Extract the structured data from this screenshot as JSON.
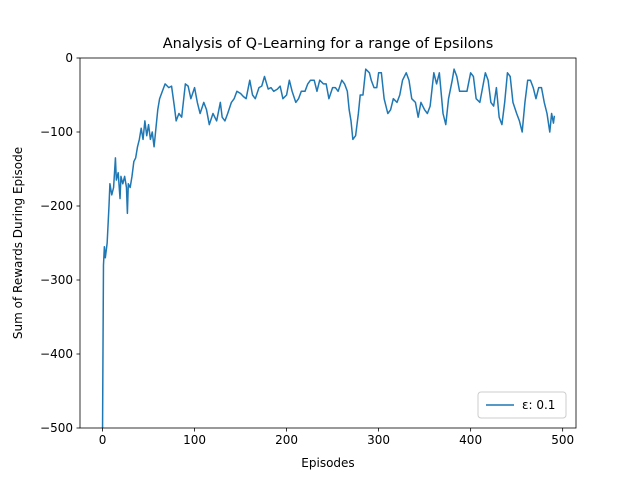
{
  "chart_data": {
    "type": "line",
    "title": "Analysis of Q-Learning for a range of Epsilons",
    "x_label": "Episodes",
    "y_label": "Sum of Rewards During Episode",
    "xlim": [
      -24.5,
      514.5
    ],
    "xticks": [
      0,
      100,
      200,
      300,
      400,
      500
    ],
    "ylim": [
      -500,
      0
    ],
    "yticks": [
      {
        "value": -500,
        "label": "−500"
      },
      {
        "value": -400,
        "label": "−400"
      },
      {
        "value": -300,
        "label": "−300"
      },
      {
        "value": -200,
        "label": "−200"
      },
      {
        "value": -100,
        "label": "−100"
      },
      0
    ],
    "legend": "lower right",
    "x": [
      0,
      1,
      2,
      3,
      5,
      7,
      8,
      10,
      12,
      14,
      15,
      17,
      19,
      20,
      22,
      24,
      26,
      27,
      28,
      30,
      32,
      34,
      36,
      38,
      40,
      42,
      44,
      46,
      48,
      50,
      52,
      54,
      56,
      58,
      60,
      62,
      65,
      68,
      72,
      75,
      78,
      80,
      83,
      86,
      90,
      93,
      96,
      100,
      103,
      106,
      110,
      113,
      116,
      120,
      124,
      128,
      130,
      133,
      136,
      140,
      143,
      146,
      150,
      153,
      156,
      160,
      163,
      166,
      170,
      173,
      176,
      180,
      183,
      186,
      190,
      193,
      196,
      200,
      203,
      206,
      210,
      213,
      216,
      220,
      223,
      226,
      230,
      233,
      236,
      240,
      243,
      246,
      250,
      253,
      256,
      260,
      263,
      266,
      268,
      270,
      272,
      275,
      278,
      280,
      283,
      286,
      290,
      292,
      295,
      298,
      300,
      303,
      306,
      310,
      313,
      316,
      320,
      323,
      326,
      330,
      333,
      336,
      340,
      343,
      346,
      350,
      353,
      356,
      360,
      363,
      366,
      370,
      373,
      376,
      380,
      382,
      385,
      388,
      392,
      396,
      400,
      403,
      406,
      410,
      413,
      416,
      419,
      422,
      425,
      428,
      431,
      434,
      437,
      440,
      443,
      446,
      450,
      453,
      456,
      459,
      462,
      465,
      468,
      471,
      474,
      477,
      480,
      483,
      486,
      488,
      490,
      491
    ],
    "series": [
      {
        "name": "ε: 0.1",
        "color": "#1f77b4",
        "values": [
          -500,
          -280,
          -255,
          -270,
          -250,
          -200,
          -170,
          -185,
          -175,
          -135,
          -165,
          -155,
          -190,
          -160,
          -170,
          -160,
          -175,
          -210,
          -170,
          -175,
          -160,
          -140,
          -135,
          -120,
          -110,
          -95,
          -110,
          -85,
          -105,
          -90,
          -110,
          -100,
          -120,
          -95,
          -70,
          -55,
          -45,
          -35,
          -40,
          -38,
          -65,
          -85,
          -75,
          -80,
          -35,
          -38,
          -55,
          -40,
          -60,
          -75,
          -60,
          -70,
          -90,
          -75,
          -85,
          -60,
          -80,
          -85,
          -75,
          -60,
          -55,
          -45,
          -48,
          -52,
          -55,
          -30,
          -50,
          -55,
          -40,
          -38,
          -25,
          -42,
          -40,
          -45,
          -42,
          -38,
          -55,
          -50,
          -30,
          -45,
          -60,
          -55,
          -45,
          -45,
          -35,
          -30,
          -30,
          -45,
          -30,
          -35,
          -35,
          -55,
          -40,
          -40,
          -45,
          -30,
          -35,
          -45,
          -70,
          -85,
          -110,
          -105,
          -75,
          -50,
          -50,
          -15,
          -20,
          -30,
          -40,
          -40,
          -20,
          -20,
          -55,
          -75,
          -70,
          -55,
          -60,
          -50,
          -30,
          -20,
          -30,
          -55,
          -60,
          -80,
          -60,
          -70,
          -75,
          -65,
          -20,
          -35,
          -20,
          -75,
          -90,
          -55,
          -30,
          -15,
          -25,
          -45,
          -45,
          -45,
          -20,
          -25,
          -55,
          -60,
          -40,
          -20,
          -30,
          -60,
          -65,
          -40,
          -80,
          -90,
          -60,
          -20,
          -25,
          -60,
          -75,
          -85,
          -100,
          -60,
          -30,
          -30,
          -40,
          -55,
          -40,
          -40,
          -60,
          -75,
          -100,
          -75,
          -88,
          -78
        ]
      }
    ]
  }
}
